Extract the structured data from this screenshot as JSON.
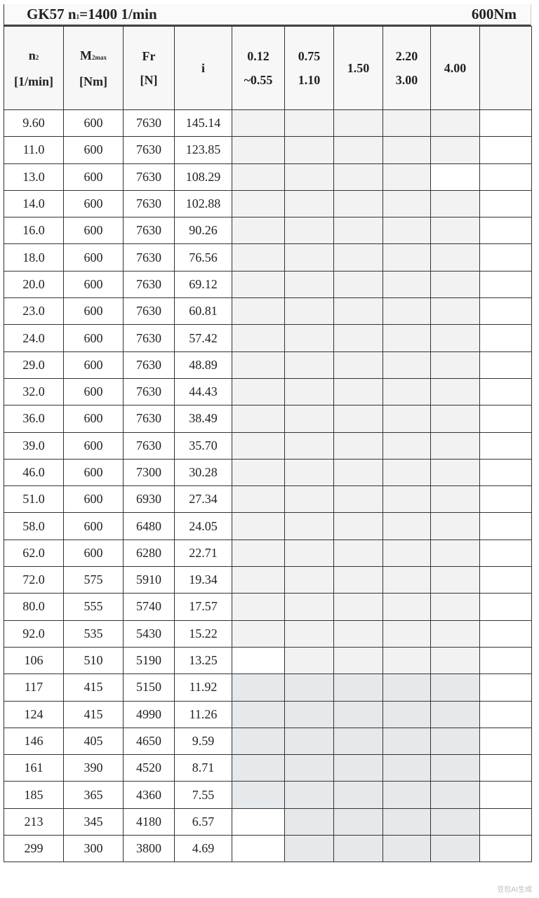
{
  "title": {
    "model": "GK57 n",
    "n1_sub": "1",
    "speed": "=1400 1/min",
    "torque": "600Nm"
  },
  "headers": {
    "n2": {
      "main": "n",
      "sub": "2",
      "unit": "[1/min]"
    },
    "m2max": {
      "main": "M",
      "sub": "2max",
      "unit": "[Nm]"
    },
    "fr": {
      "main": "Fr",
      "unit": "[N]"
    },
    "i": {
      "main": "i"
    },
    "power": [
      {
        "line1": "0.12",
        "line2": "~0.55"
      },
      {
        "line1": "0.75",
        "line2": "1.10"
      },
      {
        "line1": "1.50",
        "line2": ""
      },
      {
        "line1": "2.20",
        "line2": "3.00"
      },
      {
        "line1": "4.00",
        "line2": ""
      },
      {
        "line1": "",
        "line2": ""
      }
    ]
  },
  "rows": [
    {
      "n2": "9.60",
      "m2": "600",
      "fr": "7630",
      "i": "145.14",
      "shade": [
        "l",
        "l",
        "l",
        "l",
        "l",
        "w"
      ]
    },
    {
      "n2": "11.0",
      "m2": "600",
      "fr": "7630",
      "i": "123.85",
      "shade": [
        "l",
        "l",
        "l",
        "l",
        "l",
        "w"
      ]
    },
    {
      "n2": "13.0",
      "m2": "600",
      "fr": "7630",
      "i": "108.29",
      "shade": [
        "l",
        "l",
        "l",
        "l",
        "w",
        "w"
      ]
    },
    {
      "n2": "14.0",
      "m2": "600",
      "fr": "7630",
      "i": "102.88",
      "shade": [
        "l",
        "l",
        "l",
        "l",
        "l",
        "w"
      ]
    },
    {
      "n2": "16.0",
      "m2": "600",
      "fr": "7630",
      "i": "90.26",
      "shade": [
        "l",
        "l",
        "l",
        "l",
        "l",
        "w"
      ]
    },
    {
      "n2": "18.0",
      "m2": "600",
      "fr": "7630",
      "i": "76.56",
      "shade": [
        "l",
        "l",
        "l",
        "l",
        "l",
        "w"
      ]
    },
    {
      "n2": "20.0",
      "m2": "600",
      "fr": "7630",
      "i": "69.12",
      "shade": [
        "l",
        "l",
        "l",
        "l",
        "l",
        "w"
      ]
    },
    {
      "n2": "23.0",
      "m2": "600",
      "fr": "7630",
      "i": "60.81",
      "shade": [
        "l",
        "l",
        "l",
        "l",
        "l",
        "w"
      ]
    },
    {
      "n2": "24.0",
      "m2": "600",
      "fr": "7630",
      "i": "57.42",
      "shade": [
        "l",
        "l",
        "l",
        "l",
        "l",
        "w"
      ]
    },
    {
      "n2": "29.0",
      "m2": "600",
      "fr": "7630",
      "i": "48.89",
      "shade": [
        "l",
        "l",
        "l",
        "l",
        "l",
        "w"
      ]
    },
    {
      "n2": "32.0",
      "m2": "600",
      "fr": "7630",
      "i": "44.43",
      "shade": [
        "l",
        "l",
        "l",
        "l",
        "l",
        "w"
      ]
    },
    {
      "n2": "36.0",
      "m2": "600",
      "fr": "7630",
      "i": "38.49",
      "shade": [
        "l",
        "l",
        "l",
        "l",
        "l",
        "w"
      ]
    },
    {
      "n2": "39.0",
      "m2": "600",
      "fr": "7630",
      "i": "35.70",
      "shade": [
        "l",
        "l",
        "l",
        "l",
        "l",
        "w"
      ]
    },
    {
      "n2": "46.0",
      "m2": "600",
      "fr": "7300",
      "i": "30.28",
      "shade": [
        "l",
        "l",
        "l",
        "l",
        "l",
        "w"
      ]
    },
    {
      "n2": "51.0",
      "m2": "600",
      "fr": "6930",
      "i": "27.34",
      "shade": [
        "l",
        "l",
        "l",
        "l",
        "l",
        "w"
      ]
    },
    {
      "n2": "58.0",
      "m2": "600",
      "fr": "6480",
      "i": "24.05",
      "shade": [
        "l",
        "l",
        "l",
        "l",
        "l",
        "w"
      ]
    },
    {
      "n2": "62.0",
      "m2": "600",
      "fr": "6280",
      "i": "22.71",
      "shade": [
        "l",
        "l",
        "l",
        "l",
        "l",
        "w"
      ]
    },
    {
      "n2": "72.0",
      "m2": "575",
      "fr": "5910",
      "i": "19.34",
      "shade": [
        "l",
        "l",
        "l",
        "l",
        "l",
        "w"
      ]
    },
    {
      "n2": "80.0",
      "m2": "555",
      "fr": "5740",
      "i": "17.57",
      "shade": [
        "l",
        "l",
        "l",
        "l",
        "l",
        "w"
      ]
    },
    {
      "n2": "92.0",
      "m2": "535",
      "fr": "5430",
      "i": "15.22",
      "shade": [
        "l",
        "l",
        "l",
        "l",
        "l",
        "w"
      ]
    },
    {
      "n2": "106",
      "m2": "510",
      "fr": "5190",
      "i": "13.25",
      "shade": [
        "w",
        "l",
        "l",
        "l",
        "l",
        "w"
      ]
    },
    {
      "n2": "117",
      "m2": "415",
      "fr": "5150",
      "i": "11.92",
      "shade": [
        "d",
        "d",
        "d",
        "d",
        "d",
        "w"
      ]
    },
    {
      "n2": "124",
      "m2": "415",
      "fr": "4990",
      "i": "11.26",
      "shade": [
        "d",
        "d",
        "d",
        "d",
        "d",
        "w"
      ]
    },
    {
      "n2": "146",
      "m2": "405",
      "fr": "4650",
      "i": "9.59",
      "shade": [
        "d",
        "d",
        "d",
        "d",
        "d",
        "w"
      ]
    },
    {
      "n2": "161",
      "m2": "390",
      "fr": "4520",
      "i": "8.71",
      "shade": [
        "d",
        "d",
        "d",
        "d",
        "d",
        "w"
      ]
    },
    {
      "n2": "185",
      "m2": "365",
      "fr": "4360",
      "i": "7.55",
      "shade": [
        "d",
        "d",
        "d",
        "d",
        "d",
        "w"
      ]
    },
    {
      "n2": "213",
      "m2": "345",
      "fr": "4180",
      "i": "6.57",
      "shade": [
        "w",
        "d",
        "d",
        "d",
        "d",
        "w"
      ]
    },
    {
      "n2": "299",
      "m2": "300",
      "fr": "3800",
      "i": "4.69",
      "shade": [
        "w",
        "d",
        "d",
        "d",
        "d",
        "w"
      ]
    }
  ],
  "colors": {
    "shade_light": "#f2f2f2",
    "shade_dark": "#e6e9eb",
    "grid": "#333333"
  },
  "watermark": "豆包AI生成"
}
